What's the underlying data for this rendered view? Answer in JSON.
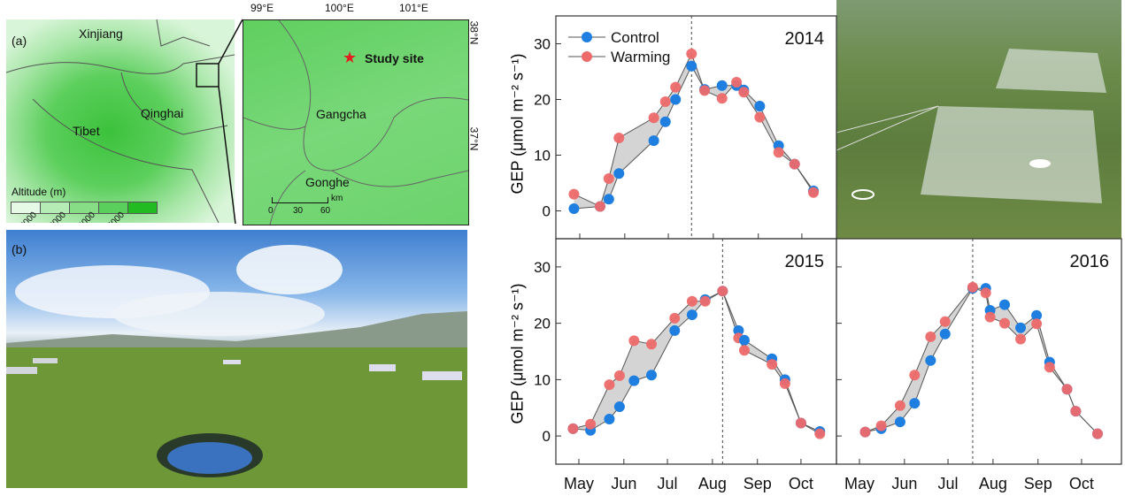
{
  "panel_a": {
    "label": "(a)",
    "regions": [
      "Xinjiang",
      "Qinghai",
      "Tibet"
    ],
    "legend_title": "Altitude (m)",
    "legend_ticks": [
      "2000",
      "3000",
      "4000",
      "5000"
    ],
    "legend_colors": [
      "#e6f8e6",
      "#b5ebb5",
      "#86dd86",
      "#5bcf5b",
      "#22bb22"
    ],
    "inset": {
      "longitudes": [
        "99°E",
        "100°E",
        "101°E"
      ],
      "latitudes": [
        "38°N",
        "37°N"
      ],
      "site_label": "Study site",
      "towns": [
        "Gangcha",
        "Gonghe"
      ],
      "scale_ticks": [
        "0",
        "30",
        "60"
      ],
      "scale_unit": "km",
      "star_color": "#e02020"
    }
  },
  "panel_b": {
    "label": "(b)"
  },
  "ylabel": "GEP (μmol m⁻² s⁻¹)",
  "legend": {
    "control": "Control",
    "warming": "Warming"
  },
  "colors": {
    "control": "#1f7fe0",
    "warming": "#ee6a6a",
    "shade": "#d4d4d4"
  },
  "chart_data": [
    {
      "type": "line",
      "title": "2014",
      "ylabel": "GEP (μmol m⁻² s⁻¹)",
      "ylim": [
        -5,
        35
      ],
      "yticks": [
        0,
        10,
        20,
        30
      ],
      "xticks": [
        "May",
        "Jun",
        "Jul",
        "Aug",
        "Sep",
        "Oct"
      ],
      "peak_date": "07-17",
      "dates": [
        "04-27",
        "05-15",
        "05-21",
        "05-28",
        "06-21",
        "06-29",
        "07-06",
        "07-17",
        "07-26",
        "08-07",
        "08-17",
        "08-22",
        "09-02",
        "09-15",
        "09-26",
        "10-09"
      ],
      "series": [
        {
          "name": "Control",
          "values": [
            0.4,
            0.8,
            2.1,
            6.7,
            12.6,
            16.0,
            20.0,
            26.0,
            21.8,
            22.5,
            22.5,
            21.7,
            18.8,
            11.7,
            8.4,
            3.6
          ]
        },
        {
          "name": "Warming",
          "values": [
            3.0,
            0.8,
            5.8,
            13.1,
            16.7,
            19.6,
            22.2,
            28.2,
            21.6,
            20.2,
            23.1,
            21.3,
            16.8,
            10.5,
            8.4,
            3.3
          ]
        }
      ]
    },
    {
      "type": "line",
      "title": "2015",
      "ylabel": "GEP (μmol m⁻² s⁻¹)",
      "ylim": [
        -5,
        35
      ],
      "yticks": [
        0,
        10,
        20,
        30
      ],
      "xticks": [
        "May",
        "Jun",
        "Jul",
        "Aug",
        "Sep",
        "Oct"
      ],
      "peak_date": "08-08",
      "dates": [
        "04-27",
        "05-09",
        "05-22",
        "05-29",
        "06-08",
        "06-20",
        "07-06",
        "07-18",
        "07-27",
        "08-08",
        "08-19",
        "08-23",
        "09-11",
        "09-20",
        "10-01",
        "10-14"
      ],
      "series": [
        {
          "name": "Control",
          "values": [
            1.3,
            1.0,
            3.0,
            5.2,
            9.8,
            10.8,
            18.7,
            21.5,
            24.2,
            25.7,
            18.7,
            17.0,
            13.7,
            10.0,
            2.3,
            0.8
          ]
        },
        {
          "name": "Warming",
          "values": [
            1.3,
            2.1,
            9.1,
            10.7,
            16.9,
            16.3,
            20.9,
            23.9,
            23.9,
            25.7,
            17.4,
            15.2,
            12.7,
            9.3,
            2.3,
            0.4
          ]
        }
      ]
    },
    {
      "type": "line",
      "title": "2016",
      "ylim": [
        -5,
        35
      ],
      "yticks": [
        0,
        10,
        20,
        30
      ],
      "xticks": [
        "May",
        "Jun",
        "Jul",
        "Aug",
        "Sep",
        "Oct"
      ],
      "peak_date": "07-18",
      "dates": [
        "05-05",
        "05-16",
        "05-29",
        "06-08",
        "06-19",
        "06-29",
        "07-18",
        "07-27",
        "07-30",
        "08-09",
        "08-20",
        "08-31",
        "09-09",
        "09-21",
        "09-27",
        "10-12"
      ],
      "series": [
        {
          "name": "Control",
          "values": [
            0.7,
            1.3,
            2.5,
            5.8,
            13.4,
            18.1,
            26.2,
            26.2,
            22.3,
            23.3,
            19.2,
            21.4,
            13.1,
            8.3,
            4.4,
            0.4
          ]
        },
        {
          "name": "Warming",
          "values": [
            0.7,
            1.8,
            5.4,
            10.8,
            17.6,
            20.3,
            26.4,
            25.4,
            21.1,
            20.0,
            17.2,
            19.9,
            12.2,
            8.3,
            4.4,
            0.4
          ]
        }
      ]
    }
  ]
}
